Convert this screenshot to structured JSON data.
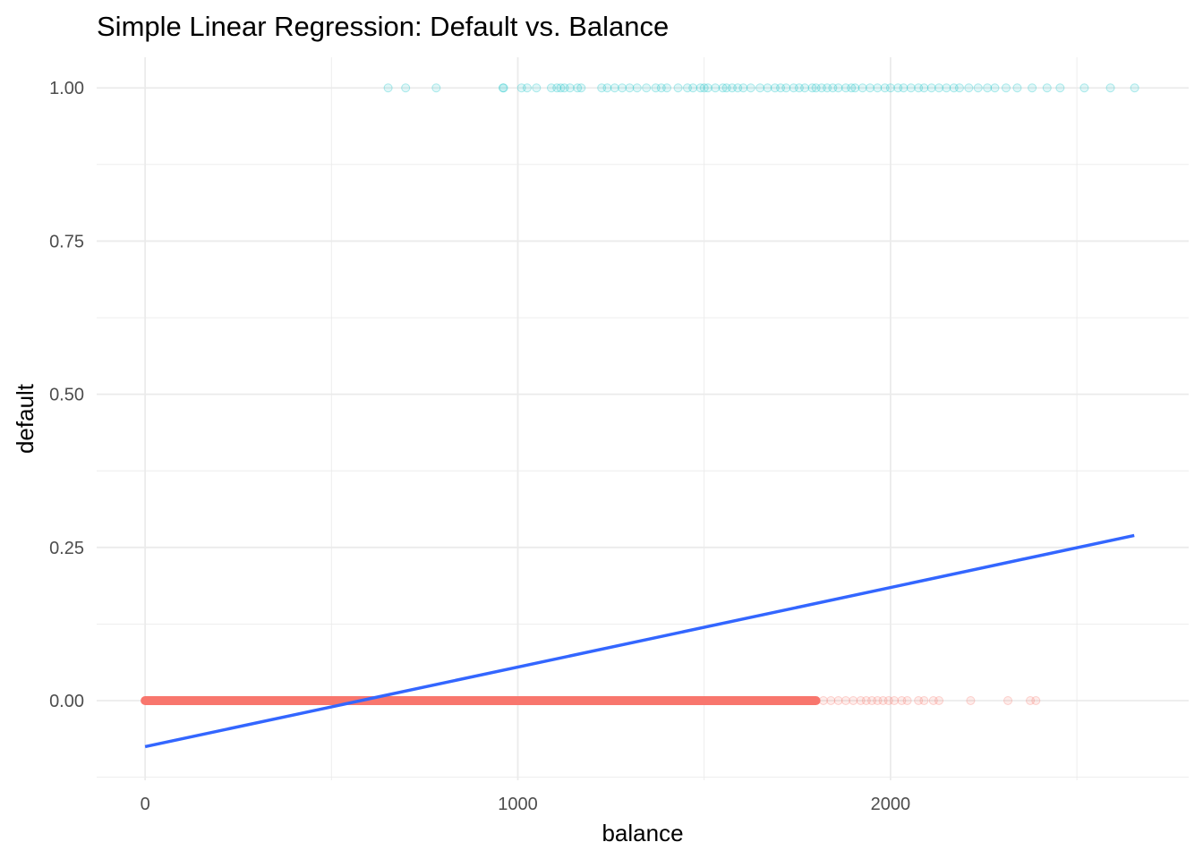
{
  "chart_data": {
    "type": "scatter",
    "title": "Simple Linear Regression: Default vs. Balance",
    "xlabel": "balance",
    "ylabel": "default",
    "xlim": [
      -130,
      2800
    ],
    "ylim": [
      -0.13,
      1.05
    ],
    "x_ticks": [
      0,
      1000,
      2000
    ],
    "y_ticks": [
      0.0,
      0.25,
      0.5,
      0.75,
      1.0
    ],
    "x_tick_labels": [
      "0",
      "1000",
      "2000"
    ],
    "y_tick_labels": [
      "0.00",
      "0.25",
      "0.50",
      "0.75",
      "1.00"
    ],
    "grid": true,
    "legend": "none",
    "colors": {
      "default_yes": "#00BFC4",
      "default_no": "#F8766D",
      "regression_line": "#3366FF",
      "grid": "#ebebeb"
    },
    "series": [
      {
        "role": "points-default-1",
        "y": 1,
        "x": [
          652,
          699,
          781,
          960,
          962,
          1010,
          1025,
          1050,
          1090,
          1105,
          1115,
          1125,
          1140,
          1160,
          1170,
          1225,
          1240,
          1260,
          1280,
          1300,
          1320,
          1345,
          1370,
          1385,
          1400,
          1430,
          1455,
          1470,
          1490,
          1500,
          1510,
          1530,
          1550,
          1560,
          1575,
          1590,
          1605,
          1625,
          1650,
          1670,
          1690,
          1705,
          1720,
          1740,
          1755,
          1770,
          1790,
          1800,
          1815,
          1830,
          1845,
          1860,
          1880,
          1895,
          1905,
          1925,
          1945,
          1965,
          1985,
          2000,
          2020,
          2035,
          2055,
          2075,
          2090,
          2110,
          2130,
          2150,
          2170,
          2185,
          2210,
          2235,
          2260,
          2280,
          2310,
          2340,
          2380,
          2420,
          2455,
          2520,
          2590,
          2655
        ]
      },
      {
        "role": "points-default-0",
        "y": 0,
        "x_dense_range": [
          0,
          1800
        ],
        "x": [
          1820,
          1840,
          1860,
          1880,
          1900,
          1920,
          1935,
          1950,
          1965,
          1980,
          1995,
          2010,
          2030,
          2045,
          2075,
          2090,
          2115,
          2130,
          2215,
          2315,
          2375,
          2390
        ]
      }
    ],
    "regression": {
      "intercept": -0.0752,
      "slope": 0.0001299,
      "x_range": [
        0,
        2654
      ]
    }
  }
}
